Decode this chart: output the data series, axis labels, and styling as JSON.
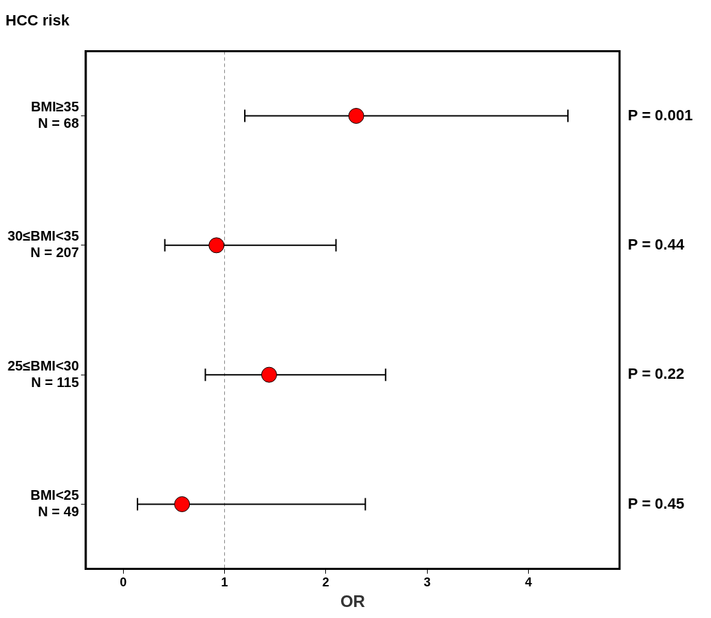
{
  "chart_data": {
    "type": "scatter",
    "title": "HCC risk",
    "xlabel": "OR",
    "orientation": "horizontal",
    "categories": [
      "BMI≥35\nN = 68",
      "30≤BMI<35\nN = 207",
      "25≤BMI<30\nN = 115",
      "BMI<25\nN = 49"
    ],
    "series": [
      {
        "color": "#ff0000",
        "values": [
          2.3,
          0.92,
          1.44,
          0.58
        ],
        "errors": [
          [
            1.2,
            4.39
          ],
          [
            0.41,
            2.1
          ],
          [
            0.81,
            2.59
          ],
          [
            0.14,
            2.39
          ]
        ]
      }
    ],
    "xlim": [
      -0.37,
      4.9
    ],
    "xticks": [
      0,
      1,
      2,
      3,
      4
    ],
    "ref_lines": [
      {
        "axis": "x",
        "value": 1,
        "color": "#808080",
        "line_style": "dashed"
      }
    ],
    "annotations": [
      "P = 0.001",
      "P = 0.44",
      "P = 0.22",
      "P = 0.45"
    ],
    "marker": "circle",
    "grid": false,
    "legend": false
  }
}
